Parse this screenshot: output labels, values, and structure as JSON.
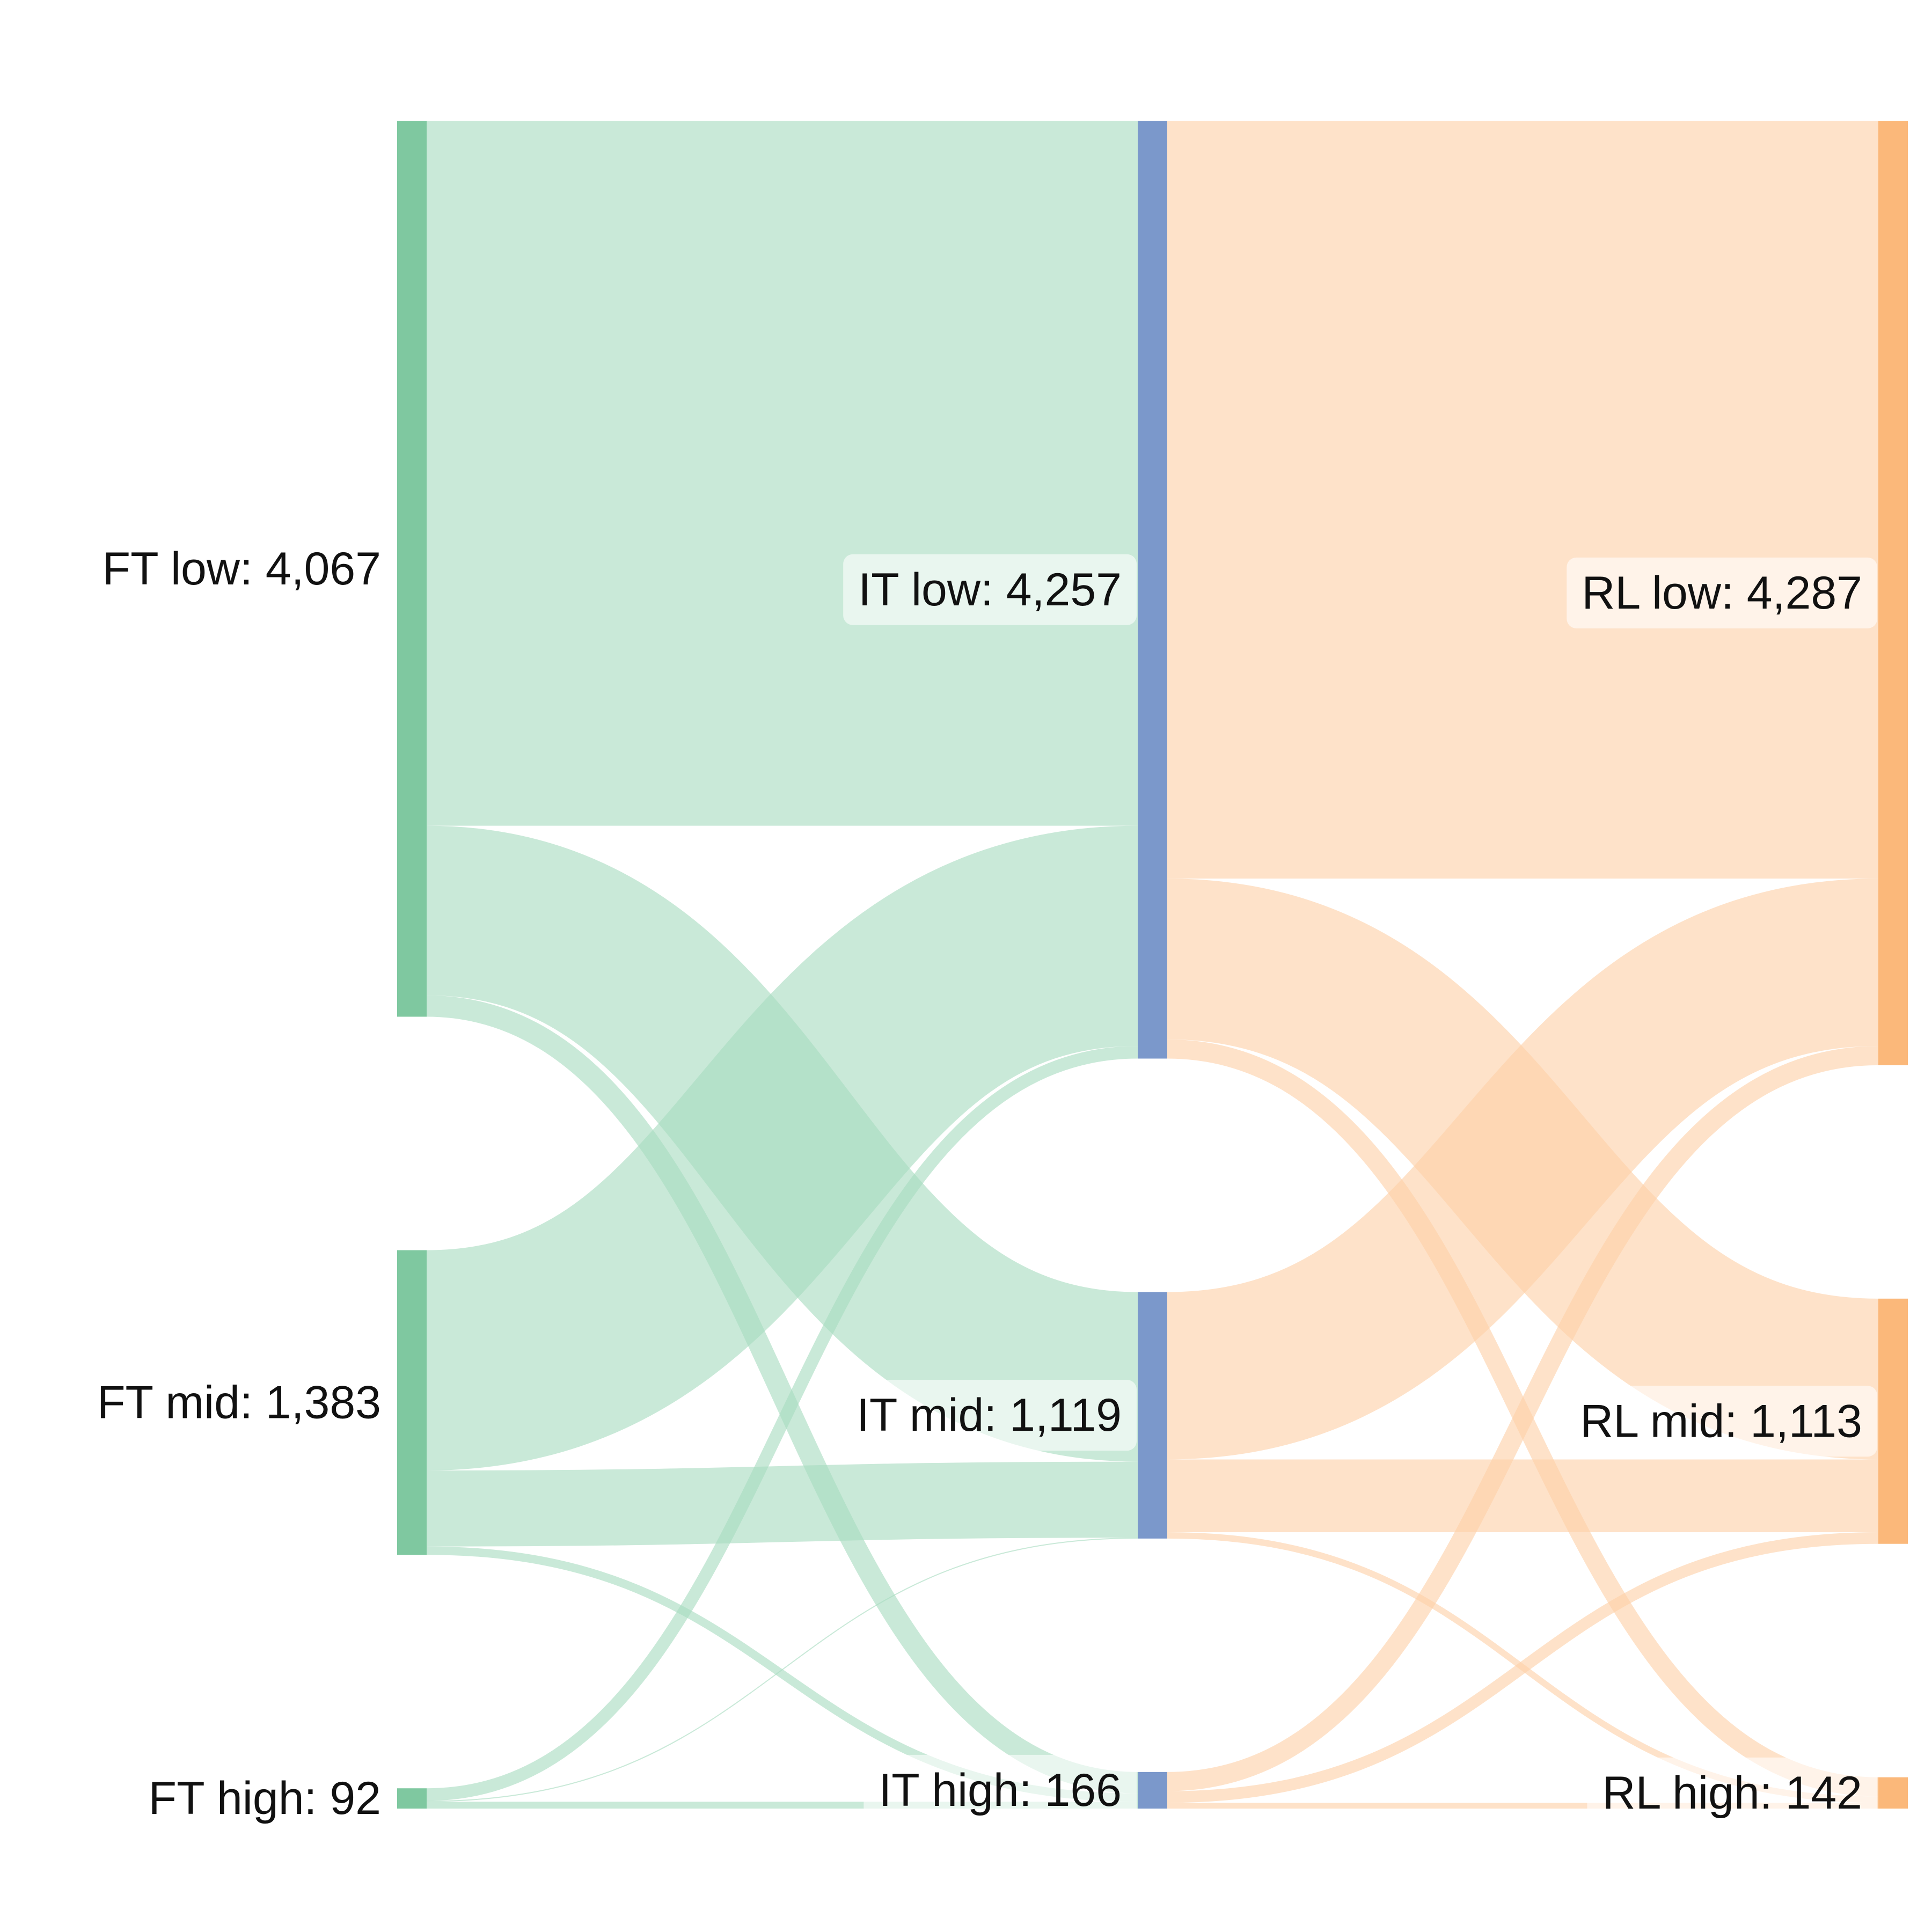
{
  "chart_data": {
    "type": "sankey",
    "stages": [
      "FT",
      "IT",
      "RL"
    ],
    "nodes": [
      {
        "id": "ft_low",
        "stage": 0,
        "label": "FT low: 4,067",
        "value": 4067,
        "color": "#7fc8a0"
      },
      {
        "id": "ft_mid",
        "stage": 0,
        "label": "FT mid: 1,383",
        "value": 1383,
        "color": "#7fc8a0"
      },
      {
        "id": "ft_high",
        "stage": 0,
        "label": "FT high: 92",
        "value": 92,
        "color": "#7fc8a0"
      },
      {
        "id": "it_low",
        "stage": 1,
        "label": "IT low: 4,257",
        "value": 4257,
        "color": "#7b98cb"
      },
      {
        "id": "it_mid",
        "stage": 1,
        "label": "IT mid: 1,119",
        "value": 1119,
        "color": "#7b98cb"
      },
      {
        "id": "it_high",
        "stage": 1,
        "label": "IT high: 166",
        "value": 166,
        "color": "#7b98cb"
      },
      {
        "id": "rl_low",
        "stage": 2,
        "label": "RL low: 4,287",
        "value": 4287,
        "color": "#fbb87a"
      },
      {
        "id": "rl_mid",
        "stage": 2,
        "label": "RL mid: 1,113",
        "value": 1113,
        "color": "#fbb87a"
      },
      {
        "id": "rl_high",
        "stage": 2,
        "label": "RL high: 142",
        "value": 142,
        "color": "#fbb87a"
      }
    ],
    "links": [
      {
        "source": "ft_low",
        "target": "it_low",
        "value": 3200
      },
      {
        "source": "ft_low",
        "target": "it_mid",
        "value": 770
      },
      {
        "source": "ft_low",
        "target": "it_high",
        "value": 97
      },
      {
        "source": "ft_mid",
        "target": "it_low",
        "value": 1000
      },
      {
        "source": "ft_mid",
        "target": "it_mid",
        "value": 345
      },
      {
        "source": "ft_mid",
        "target": "it_high",
        "value": 38
      },
      {
        "source": "ft_high",
        "target": "it_low",
        "value": 57
      },
      {
        "source": "ft_high",
        "target": "it_mid",
        "value": 4
      },
      {
        "source": "ft_high",
        "target": "it_high",
        "value": 31
      },
      {
        "source": "it_low",
        "target": "rl_low",
        "value": 3440
      },
      {
        "source": "it_low",
        "target": "rl_mid",
        "value": 730
      },
      {
        "source": "it_low",
        "target": "rl_high",
        "value": 87
      },
      {
        "source": "it_mid",
        "target": "rl_low",
        "value": 760
      },
      {
        "source": "it_mid",
        "target": "rl_mid",
        "value": 330
      },
      {
        "source": "it_mid",
        "target": "rl_high",
        "value": 29
      },
      {
        "source": "it_high",
        "target": "rl_low",
        "value": 87
      },
      {
        "source": "it_high",
        "target": "rl_mid",
        "value": 53
      },
      {
        "source": "it_high",
        "target": "rl_high",
        "value": 26
      }
    ],
    "link_colors": {
      "0": "#a8dcc0",
      "1": "#fdd0a8"
    }
  }
}
